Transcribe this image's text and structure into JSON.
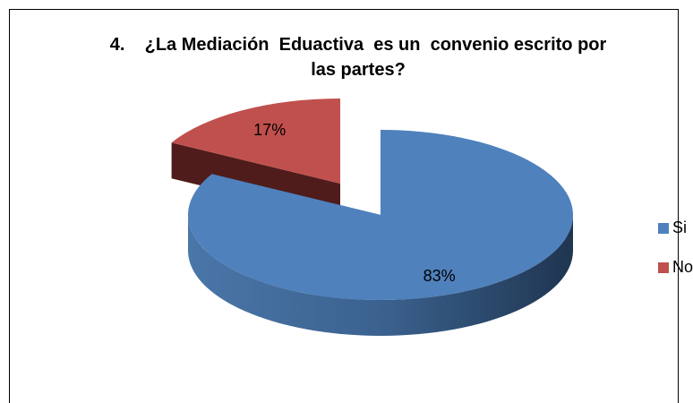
{
  "chart_data": {
    "type": "pie",
    "title": "4.    ¿La Mediación  Eduactiva  es un  convenio escrito por las partes?",
    "categories": [
      "Si",
      "No"
    ],
    "values": [
      83,
      17
    ],
    "value_labels": [
      "83%",
      "17%"
    ],
    "colors": [
      "#4f81bd",
      "#c0504d"
    ],
    "legend": "right"
  }
}
